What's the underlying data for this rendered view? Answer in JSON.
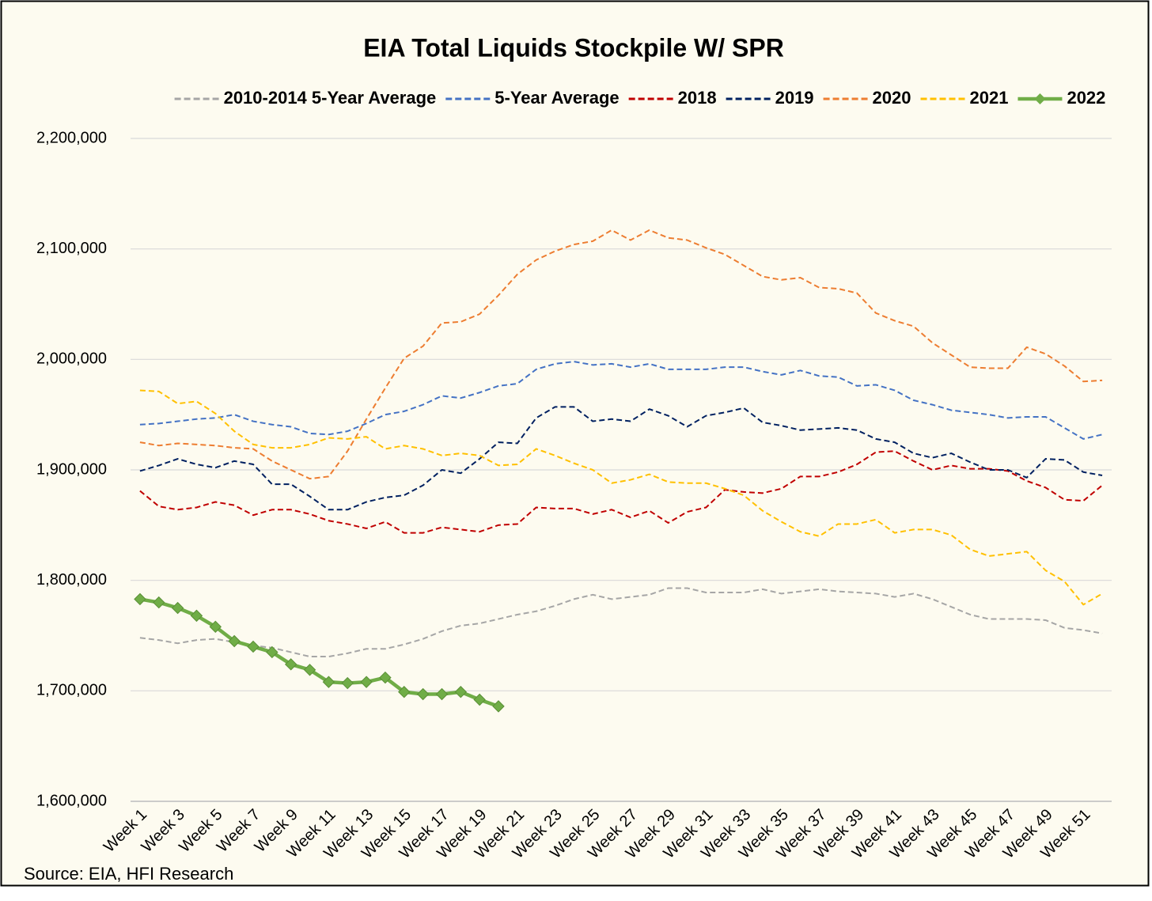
{
  "chart_data": {
    "type": "line",
    "title": "EIA Total Liquids Stockpile W/ SPR",
    "source": "Source: EIA, HFI Research",
    "categories": [
      "Week 1",
      null,
      "Week 3",
      null,
      "Week 5",
      null,
      "Week 7",
      null,
      "Week 9",
      null,
      "Week 11",
      null,
      "Week 13",
      null,
      "Week 15",
      null,
      "Week 17",
      null,
      "Week 19",
      null,
      "Week 21",
      null,
      "Week 23",
      null,
      "Week 25",
      null,
      "Week 27",
      null,
      "Week 29",
      null,
      "Week 31",
      null,
      "Week 33",
      null,
      "Week 35",
      null,
      "Week 37",
      null,
      "Week 39",
      null,
      "Week 41",
      null,
      "Week 43",
      null,
      "Week 45",
      null,
      "Week 47",
      null,
      "Week 49",
      null,
      "Week 51",
      null
    ],
    "ylim": [
      1600000,
      2200000
    ],
    "yticks": [
      {
        "value": 1600000,
        "label": "1,600,000"
      },
      {
        "value": 1700000,
        "label": "1,700,000"
      },
      {
        "value": 1800000,
        "label": "1,800,000"
      },
      {
        "value": 1900000,
        "label": "1,900,000"
      },
      {
        "value": 2000000,
        "label": "2,000,000"
      },
      {
        "value": 2100000,
        "label": "2,100,000"
      },
      {
        "value": 2200000,
        "label": "2,200,000"
      }
    ],
    "grid": true,
    "legend": "top",
    "series": [
      {
        "name": "2010-2014 5-Year Average",
        "color": "#a6a6a6",
        "line_style": "dashed",
        "values": [
          1748000,
          1746000,
          1743000,
          1746000,
          1747000,
          1744000,
          1741000,
          1739000,
          1735000,
          1731000,
          1731000,
          1734000,
          1738000,
          1738000,
          1742000,
          1747000,
          1754000,
          1759000,
          1761000,
          1765000,
          1769000,
          1772000,
          1777000,
          1783000,
          1787000,
          1783000,
          1785000,
          1787000,
          1793000,
          1793000,
          1789000,
          1789000,
          1789000,
          1792000,
          1788000,
          1790000,
          1792000,
          1790000,
          1789000,
          1788000,
          1785000,
          1788000,
          1783000,
          1776000,
          1769000,
          1765000,
          1765000,
          1765000,
          1764000,
          1757000,
          1755000,
          1752000
        ]
      },
      {
        "name": "5-Year Average",
        "color": "#4472c4",
        "line_style": "dashed",
        "values": [
          1941000,
          1942000,
          1944000,
          1946000,
          1947000,
          1950000,
          1944000,
          1941000,
          1939000,
          1933000,
          1932000,
          1935000,
          1942000,
          1950000,
          1953000,
          1959000,
          1967000,
          1965000,
          1970000,
          1976000,
          1978000,
          1991000,
          1996000,
          1998000,
          1995000,
          1996000,
          1993000,
          1996000,
          1991000,
          1991000,
          1991000,
          1993000,
          1993000,
          1989000,
          1986000,
          1990000,
          1985000,
          1984000,
          1976000,
          1977000,
          1972000,
          1963000,
          1959000,
          1954000,
          1952000,
          1950000,
          1947000,
          1948000,
          1948000,
          1938000,
          1928000,
          1932000
        ]
      },
      {
        "name": "2018",
        "color": "#c00000",
        "line_style": "dashed",
        "values": [
          1881000,
          1867000,
          1864000,
          1866000,
          1871000,
          1868000,
          1859000,
          1864000,
          1864000,
          1860000,
          1854000,
          1851000,
          1847000,
          1853000,
          1843000,
          1843000,
          1848000,
          1846000,
          1844000,
          1850000,
          1851000,
          1866000,
          1865000,
          1865000,
          1860000,
          1864000,
          1857000,
          1863000,
          1852000,
          1862000,
          1866000,
          1882000,
          1880000,
          1879000,
          1883000,
          1894000,
          1894000,
          1898000,
          1905000,
          1916000,
          1917000,
          1908000,
          1900000,
          1904000,
          1901000,
          1901000,
          1899000,
          1890000,
          1884000,
          1873000,
          1872000,
          1886000
        ]
      },
      {
        "name": "2019",
        "color": "#002060",
        "line_style": "dashed",
        "values": [
          1899000,
          1904000,
          1910000,
          1905000,
          1902000,
          1908000,
          1905000,
          1887000,
          1887000,
          1876000,
          1864000,
          1864000,
          1871000,
          1875000,
          1877000,
          1886000,
          1900000,
          1897000,
          1910000,
          1925000,
          1924000,
          1947000,
          1957000,
          1957000,
          1944000,
          1946000,
          1944000,
          1955000,
          1949000,
          1939000,
          1949000,
          1952000,
          1956000,
          1943000,
          1940000,
          1936000,
          1937000,
          1938000,
          1936000,
          1928000,
          1925000,
          1915000,
          1911000,
          1915000,
          1907000,
          1900000,
          1900000,
          1893000,
          1910000,
          1909000,
          1898000,
          1895000
        ]
      },
      {
        "name": "2020",
        "color": "#ed7d31",
        "line_style": "dashed",
        "values": [
          1925000,
          1922000,
          1924000,
          1923000,
          1922000,
          1920000,
          1919000,
          1908000,
          1900000,
          1892000,
          1894000,
          1917000,
          1946000,
          1974000,
          2001000,
          2012000,
          2033000,
          2034000,
          2041000,
          2058000,
          2077000,
          2090000,
          2098000,
          2104000,
          2107000,
          2117000,
          2108000,
          2117000,
          2110000,
          2108000,
          2101000,
          2095000,
          2085000,
          2075000,
          2072000,
          2074000,
          2065000,
          2064000,
          2060000,
          2042000,
          2035000,
          2030000,
          2015000,
          2004000,
          1993000,
          1992000,
          1992000,
          2011000,
          2005000,
          1994000,
          1980000,
          1981000
        ]
      },
      {
        "name": "2021",
        "color": "#ffc000",
        "line_style": "dashed",
        "values": [
          1972000,
          1971000,
          1960000,
          1962000,
          1951000,
          1935000,
          1923000,
          1920000,
          1920000,
          1923000,
          1929000,
          1928000,
          1930000,
          1919000,
          1922000,
          1919000,
          1913000,
          1915000,
          1913000,
          1904000,
          1905000,
          1919000,
          1913000,
          1906000,
          1900000,
          1888000,
          1891000,
          1896000,
          1889000,
          1888000,
          1888000,
          1883000,
          1877000,
          1863000,
          1853000,
          1844000,
          1840000,
          1851000,
          1851000,
          1855000,
          1843000,
          1846000,
          1846000,
          1841000,
          1828000,
          1822000,
          1824000,
          1826000,
          1809000,
          1799000,
          1778000,
          1788000
        ]
      },
      {
        "name": "2022",
        "color": "#70ad47",
        "line_style": "solid",
        "marker": "diamond",
        "values": [
          1783000,
          1780000,
          1775000,
          1768000,
          1758000,
          1745000,
          1740000,
          1735000,
          1724000,
          1719000,
          1708000,
          1707000,
          1708000,
          1712000,
          1699000,
          1697000,
          1697000,
          1699000,
          1692000,
          1686000,
          null,
          null,
          null,
          null,
          null,
          null,
          null,
          null,
          null,
          null,
          null,
          null,
          null,
          null,
          null,
          null,
          null,
          null,
          null,
          null,
          null,
          null,
          null,
          null,
          null,
          null,
          null,
          null,
          null,
          null,
          null,
          null
        ]
      }
    ]
  }
}
